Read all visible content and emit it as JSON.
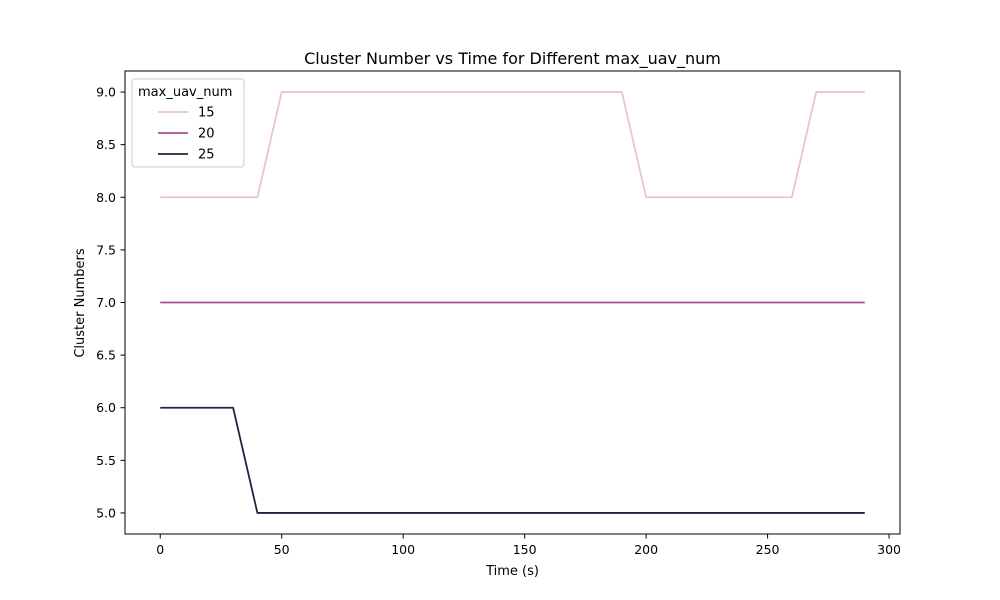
{
  "chart_data": {
    "type": "line",
    "title": "Cluster Number vs Time for Different max_uav_num",
    "xlabel": "Time (s)",
    "ylabel": "Cluster Numbers",
    "xlim": [
      -14.5,
      304.5
    ],
    "ylim": [
      4.8,
      9.2
    ],
    "xticks": [
      0,
      50,
      100,
      150,
      200,
      250,
      300
    ],
    "xtick_labels": [
      "0",
      "50",
      "100",
      "150",
      "200",
      "250",
      "300"
    ],
    "yticks": [
      5.0,
      5.5,
      6.0,
      6.5,
      7.0,
      7.5,
      8.0,
      8.5,
      9.0
    ],
    "ytick_labels": [
      "5.0",
      "5.5",
      "6.0",
      "6.5",
      "7.0",
      "7.5",
      "8.0",
      "8.5",
      "9.0"
    ],
    "grid": false,
    "legend": {
      "title": "max_uav_num",
      "position": "top-left"
    },
    "x": [
      0,
      10,
      20,
      30,
      40,
      50,
      60,
      70,
      80,
      90,
      100,
      110,
      120,
      130,
      140,
      150,
      160,
      170,
      180,
      190,
      200,
      210,
      220,
      230,
      240,
      250,
      260,
      270,
      280,
      290
    ],
    "series": [
      {
        "name": "15",
        "color": "#ebc6c0",
        "values": [
          8,
          8,
          8,
          8,
          8,
          9,
          9,
          9,
          9,
          9,
          9,
          9,
          9,
          9,
          9,
          9,
          9,
          9,
          9,
          9,
          8,
          8,
          8,
          8,
          8,
          8,
          8,
          9,
          9,
          9
        ]
      },
      {
        "name": "20",
        "color": "#a4508b",
        "values": [
          7,
          7,
          7,
          7,
          7,
          7,
          7,
          7,
          7,
          7,
          7,
          7,
          7,
          7,
          7,
          7,
          7,
          7,
          7,
          7,
          7,
          7,
          7,
          7,
          7,
          7,
          7,
          7,
          7,
          7
        ]
      },
      {
        "name": "25",
        "color": "#2d1e3e",
        "values": [
          6,
          6,
          6,
          6,
          5,
          5,
          5,
          5,
          5,
          5,
          5,
          5,
          5,
          5,
          5,
          5,
          5,
          5,
          5,
          5,
          5,
          5,
          5,
          5,
          5,
          5,
          5,
          5,
          5,
          5
        ]
      }
    ]
  }
}
